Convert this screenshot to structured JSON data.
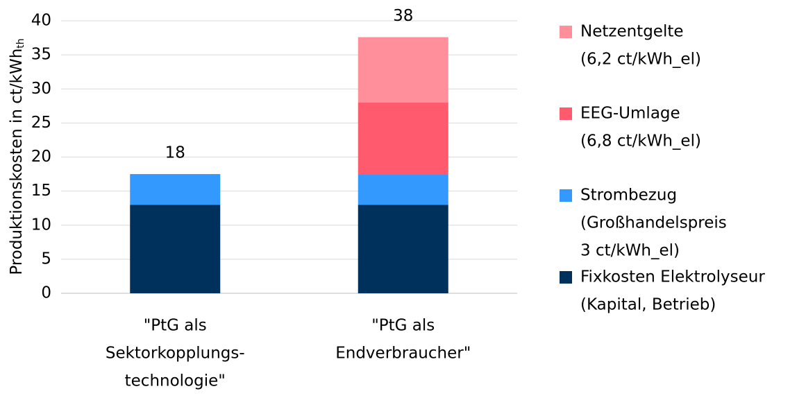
{
  "chart_data": {
    "type": "stacked_bar",
    "ylabel": "Produktionskosten in ct/kWh",
    "ylabel_sub": "th",
    "categories": [
      [
        "\"PtG als",
        "Sektorkopplungs-",
        "technologie\""
      ],
      [
        "\"PtG als",
        "Endverbraucher\""
      ]
    ],
    "series": [
      {
        "name": [
          "Fixkosten Elektrolyseur",
          "(Kapital, Betrieb)"
        ],
        "color": "#00305c",
        "values": [
          13,
          13
        ]
      },
      {
        "name": [
          "Strombezug",
          "(Großhandelspreis",
          "3 ct/kWh_el)"
        ],
        "color": "#3399ff",
        "values": [
          4.5,
          4.5
        ]
      },
      {
        "name": [
          "EEG-Umlage",
          "(6,8 ct/kWh_el)"
        ],
        "color": "#ff5a6e",
        "values": [
          0,
          10.5
        ]
      },
      {
        "name": [
          "Netzentgelte",
          "(6,2 ct/kWh_el)"
        ],
        "color": "#ff8f9a",
        "values": [
          0,
          9.6
        ]
      }
    ],
    "total_labels": [
      "18",
      "38"
    ],
    "ylim": [
      0,
      40
    ],
    "yticks": [
      0,
      5,
      10,
      15,
      20,
      25,
      30,
      35,
      40
    ],
    "grid": true
  }
}
